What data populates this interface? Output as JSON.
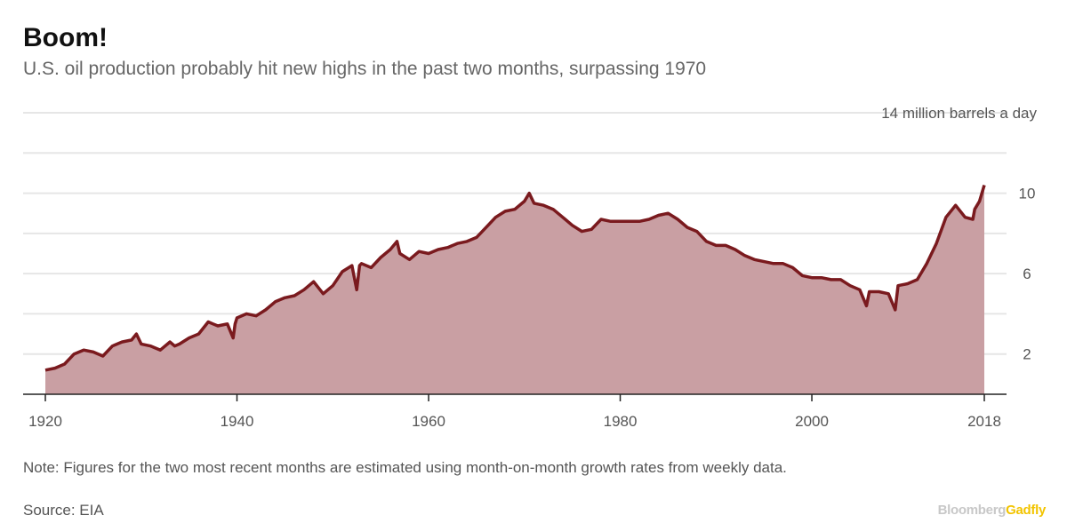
{
  "header": {
    "title": "Boom!",
    "subtitle": "U.S. oil production probably hit new highs in the past two months, surpassing 1970"
  },
  "footer": {
    "note": "Note: Figures for the two most recent months are estimated using month-on-month growth rates from weekly data.",
    "source": "Source: EIA",
    "brand_part1": "Bloomberg",
    "brand_part2": "Gadfly"
  },
  "colors": {
    "line": "#7a1a1e",
    "fill": "#c99fa3",
    "grid": "#e6e6e6",
    "brand_accent": "#f2c400"
  },
  "chart_data": {
    "type": "area",
    "title": "Boom!",
    "subtitle": "U.S. oil production probably hit new highs in the past two months, surpassing 1970",
    "unit_label": "14 million barrels a day",
    "xlim": [
      1920,
      2018
    ],
    "ylim": [
      0,
      14
    ],
    "x_ticks": [
      "1920",
      "1940",
      "1960",
      "1980",
      "2000",
      "2018"
    ],
    "x_tick_values": [
      1920,
      1940,
      1960,
      1980,
      2000,
      2018
    ],
    "y_tick_values": [
      2,
      6,
      10
    ],
    "y_tick_labels": [
      "2",
      "6",
      "10"
    ],
    "y_grid_values": [
      2,
      4,
      6,
      8,
      10,
      12,
      14
    ],
    "grid": true,
    "series": [
      {
        "x": [
          1920,
          1921,
          1922,
          1923,
          1924,
          1925,
          1926,
          1927,
          1928,
          1929,
          1929.5,
          1930,
          1931,
          1932,
          1933,
          1933.5,
          1934,
          1935,
          1936,
          1937,
          1937.5,
          1938,
          1939,
          1939.6,
          1939.8,
          1940,
          1941,
          1942,
          1943,
          1944,
          1945,
          1946,
          1947,
          1948,
          1949,
          1950,
          1951,
          1952,
          1952.5,
          1952.8,
          1953,
          1954,
          1955,
          1956,
          1956.7,
          1957,
          1958,
          1959,
          1960,
          1961,
          1962,
          1963,
          1964,
          1965,
          1966,
          1967,
          1968,
          1969,
          1970,
          1970.5,
          1971,
          1972,
          1973,
          1974,
          1975,
          1976,
          1977,
          1978,
          1979,
          1980,
          1981,
          1982,
          1983,
          1984,
          1985,
          1986,
          1987,
          1988,
          1989,
          1990,
          1991,
          1992,
          1993,
          1994,
          1995,
          1996,
          1997,
          1998,
          1999,
          2000,
          2001,
          2002,
          2003,
          2004,
          2005,
          2005.7,
          2006,
          2007,
          2008,
          2008.7,
          2009,
          2010,
          2011,
          2012,
          2013,
          2014,
          2015,
          2016,
          2016.8,
          2017,
          2017.5,
          2018
        ],
        "values": [
          1.2,
          1.3,
          1.5,
          2.0,
          2.2,
          2.1,
          1.9,
          2.4,
          2.6,
          2.7,
          3.0,
          2.5,
          2.4,
          2.2,
          2.6,
          2.4,
          2.5,
          2.8,
          3.0,
          3.6,
          3.5,
          3.4,
          3.5,
          2.8,
          3.5,
          3.8,
          4.0,
          3.9,
          4.2,
          4.6,
          4.8,
          4.9,
          5.2,
          5.6,
          5.0,
          5.4,
          6.1,
          6.4,
          5.2,
          6.4,
          6.5,
          6.3,
          6.8,
          7.2,
          7.6,
          7.0,
          6.7,
          7.1,
          7.0,
          7.2,
          7.3,
          7.5,
          7.6,
          7.8,
          8.3,
          8.8,
          9.1,
          9.2,
          9.6,
          10.0,
          9.5,
          9.4,
          9.2,
          8.8,
          8.4,
          8.1,
          8.2,
          8.7,
          8.6,
          8.6,
          8.6,
          8.6,
          8.7,
          8.9,
          9.0,
          8.7,
          8.3,
          8.1,
          7.6,
          7.4,
          7.4,
          7.2,
          6.9,
          6.7,
          6.6,
          6.5,
          6.5,
          6.3,
          5.9,
          5.8,
          5.8,
          5.7,
          5.7,
          5.4,
          5.2,
          4.4,
          5.1,
          5.1,
          5.0,
          4.2,
          5.4,
          5.5,
          5.7,
          6.5,
          7.5,
          8.8,
          9.4,
          8.8,
          8.7,
          9.2,
          9.6,
          10.4
        ]
      }
    ]
  }
}
